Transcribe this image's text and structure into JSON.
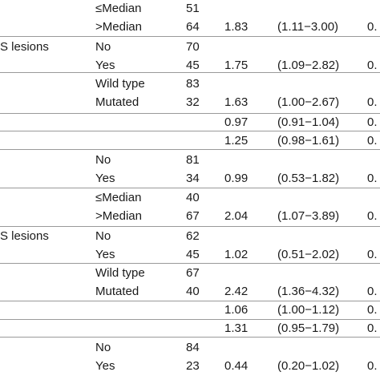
{
  "rows": [
    {
      "c0": "",
      "c1": "≤Median",
      "c2": "51",
      "c3": "",
      "c4": "",
      "c5": ""
    },
    {
      "c0": "",
      "c1": ">Median",
      "c2": "64",
      "c3": "1.83",
      "c4": "(1.11−3.00)",
      "c5": "0."
    },
    {
      "c0": "S lesions",
      "c1": "No",
      "c2": "70",
      "c3": "",
      "c4": "",
      "c5": ""
    },
    {
      "c0": "",
      "c1": "Yes",
      "c2": "45",
      "c3": "1.75",
      "c4": "(1.09−2.82)",
      "c5": "0."
    },
    {
      "c0": "",
      "c1": "Wild type",
      "c2": "83",
      "c3": "",
      "c4": "",
      "c5": ""
    },
    {
      "c0": "",
      "c1": "Mutated",
      "c2": "32",
      "c3": "1.63",
      "c4": "(1.00−2.67)",
      "c5": "0."
    },
    {
      "c0": "",
      "c1": "",
      "c2": "",
      "c3": "0.97",
      "c4": "(0.91−1.04)",
      "c5": "0."
    },
    {
      "c0": "",
      "c1": "",
      "c2": "",
      "c3": "1.25",
      "c4": "(0.98−1.61)",
      "c5": "0."
    },
    {
      "c0": "",
      "c1": "No",
      "c2": "81",
      "c3": "",
      "c4": "",
      "c5": ""
    },
    {
      "c0": "",
      "c1": "Yes",
      "c2": "34",
      "c3": "0.99",
      "c4": "(0.53−1.82)",
      "c5": "0."
    },
    {
      "c0": "",
      "c1": "≤Median",
      "c2": "40",
      "c3": "",
      "c4": "",
      "c5": ""
    },
    {
      "c0": "",
      "c1": ">Median",
      "c2": "67",
      "c3": "2.04",
      "c4": "(1.07−3.89)",
      "c5": "0."
    },
    {
      "c0": "S lesions",
      "c1": "No",
      "c2": "62",
      "c3": "",
      "c4": "",
      "c5": ""
    },
    {
      "c0": "",
      "c1": "Yes",
      "c2": "45",
      "c3": "1.02",
      "c4": "(0.51−2.02)",
      "c5": "0."
    },
    {
      "c0": "",
      "c1": "Wild type",
      "c2": "67",
      "c3": "",
      "c4": "",
      "c5": ""
    },
    {
      "c0": "",
      "c1": "Mutated",
      "c2": "40",
      "c3": "2.42",
      "c4": "(1.36−4.32)",
      "c5": "0."
    },
    {
      "c0": "",
      "c1": "",
      "c2": "",
      "c3": "1.06",
      "c4": "(1.00−1.12)",
      "c5": "0."
    },
    {
      "c0": "",
      "c1": "",
      "c2": "",
      "c3": "1.31",
      "c4": "(0.95−1.79)",
      "c5": "0."
    },
    {
      "c0": "",
      "c1": "No",
      "c2": "84",
      "c3": "",
      "c4": "",
      "c5": ""
    },
    {
      "c0": "",
      "c1": "Yes",
      "c2": "23",
      "c3": "0.44",
      "c4": "(0.20−1.02)",
      "c5": "0."
    }
  ]
}
